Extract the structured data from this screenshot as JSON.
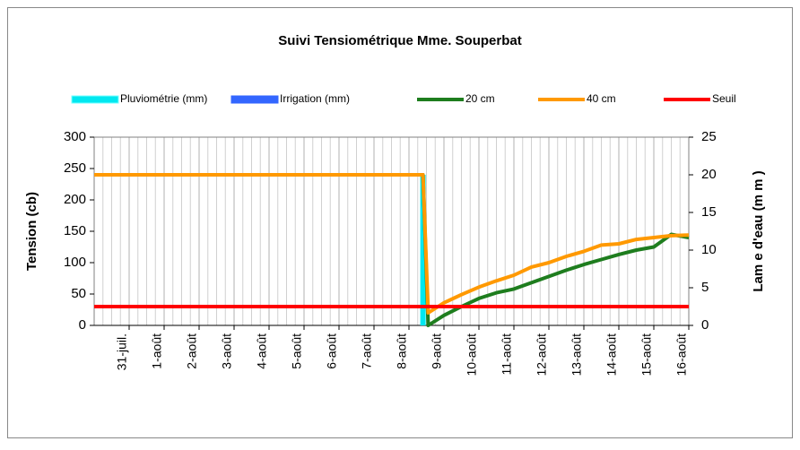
{
  "chart_data": {
    "type": "line",
    "title": "Suivi Tensiométrique Mme. Souperbat",
    "ylabel": "Tension (cb)",
    "y2label": "Lam e d'eau (m m )",
    "xlim": [
      0,
      17
    ],
    "xticks": [
      {
        "value": 1,
        "label": "31-juil."
      },
      {
        "value": 2,
        "label": "1-août"
      },
      {
        "value": 3,
        "label": "2-août"
      },
      {
        "value": 4,
        "label": "3-août"
      },
      {
        "value": 5,
        "label": "4-août"
      },
      {
        "value": 6,
        "label": "5-août"
      },
      {
        "value": 7,
        "label": "6-août"
      },
      {
        "value": 8,
        "label": "7-août"
      },
      {
        "value": 9,
        "label": "8-août"
      },
      {
        "value": 10,
        "label": "9-août"
      },
      {
        "value": 11,
        "label": "10-août"
      },
      {
        "value": 12,
        "label": "11-août"
      },
      {
        "value": 13,
        "label": "12-août"
      },
      {
        "value": 14,
        "label": "13-août"
      },
      {
        "value": 15,
        "label": "14-août"
      },
      {
        "value": 16,
        "label": "15-août"
      },
      {
        "value": 17,
        "label": "16-août"
      }
    ],
    "ylim": [
      0,
      300
    ],
    "yticks": [
      0,
      50,
      100,
      150,
      200,
      250,
      300
    ],
    "y2lim": [
      0,
      25
    ],
    "y2ticks": [
      0,
      5,
      10,
      15,
      20,
      25
    ],
    "grid": true,
    "legend": "top",
    "series": [
      {
        "name": "Pluviométrie (mm)",
        "type": "bar",
        "axis": "y2",
        "color": "#00e8f0",
        "x": [
          9.4
        ],
        "values": [
          20
        ]
      },
      {
        "name": "Irrigation (mm)",
        "type": "bar",
        "axis": "y2",
        "color": "#3366ff",
        "x": [],
        "values": []
      },
      {
        "name": "20 cm",
        "color": "#1e7d1e",
        "x": [
          0,
          9.4,
          9.55,
          10,
          10.5,
          11,
          11.5,
          12,
          12.5,
          13,
          13.5,
          14,
          14.5,
          15,
          15.5,
          16,
          16.5,
          17
        ],
        "values": [
          240,
          240,
          0,
          16,
          30,
          43,
          52,
          58,
          68,
          78,
          88,
          97,
          105,
          113,
          120,
          125,
          145,
          140
        ]
      },
      {
        "name": "40 cm",
        "color": "#ff9900",
        "x": [
          0,
          9.4,
          9.55,
          10,
          10.5,
          11,
          11.5,
          12,
          12.5,
          13,
          13.5,
          14,
          14.5,
          15,
          15.5,
          16,
          16.5,
          17
        ],
        "values": [
          240,
          240,
          20,
          36,
          49,
          61,
          71,
          80,
          93,
          100,
          110,
          118,
          128,
          130,
          137,
          140,
          143,
          144
        ]
      },
      {
        "name": "Seuil",
        "color": "#ff0000",
        "x": [
          0,
          17
        ],
        "values": [
          30,
          30
        ]
      }
    ]
  }
}
